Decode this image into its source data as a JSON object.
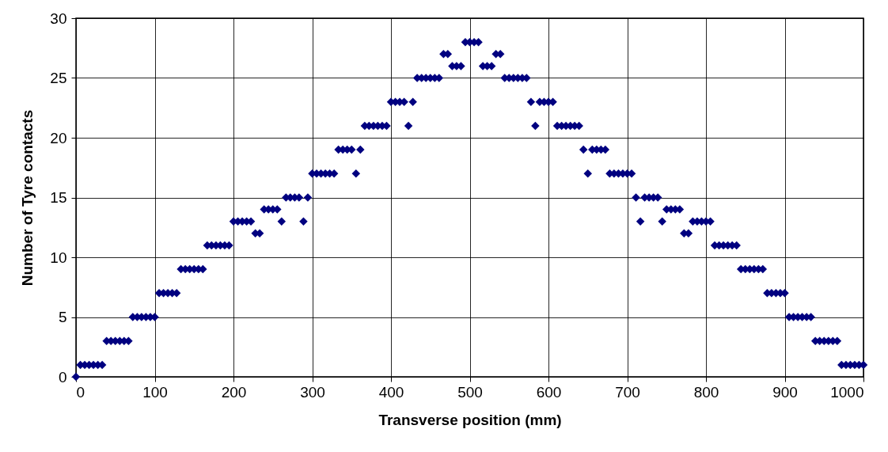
{
  "chart_data": {
    "type": "scatter",
    "xlabel": "Transverse position (mm)",
    "ylabel": "Number of Tyre contacts",
    "x": [
      0,
      5.6,
      11.1,
      16.7,
      22.2,
      27.8,
      33.3,
      38.9,
      44.4,
      50,
      55.6,
      61.1,
      66.7,
      72.2,
      77.8,
      83.3,
      88.9,
      94.4,
      100,
      105.6,
      111.1,
      116.7,
      122.2,
      127.8,
      133.3,
      138.9,
      144.4,
      150,
      155.6,
      161.1,
      166.7,
      172.2,
      177.8,
      183.3,
      188.9,
      194.4,
      200,
      205.6,
      211.1,
      216.7,
      222.2,
      227.8,
      233.3,
      238.9,
      244.4,
      250,
      255.6,
      261.1,
      266.7,
      272.2,
      277.8,
      283.3,
      288.9,
      294.4,
      300,
      305.6,
      311.1,
      316.7,
      322.2,
      327.8,
      333.3,
      338.9,
      344.4,
      350,
      355.6,
      361.1,
      366.7,
      372.2,
      377.8,
      383.3,
      388.9,
      394.4,
      400,
      405.6,
      411.1,
      416.7,
      422.2,
      427.8,
      433.3,
      438.9,
      444.4,
      450,
      455.6,
      461.1,
      466.7,
      472.2,
      477.8,
      483.3,
      488.9,
      494.4,
      500,
      505.6,
      511.1,
      516.7,
      522.2,
      527.8,
      533.3,
      538.9,
      544.4,
      550,
      555.6,
      561.1,
      566.7,
      572.2,
      577.8,
      583.3,
      588.9,
      594.4,
      600,
      605.6,
      611.1,
      616.7,
      622.2,
      627.8,
      633.3,
      638.9,
      644.4,
      650,
      655.6,
      661.1,
      666.7,
      672.2,
      677.8,
      683.3,
      688.9,
      694.4,
      700,
      705.6,
      711.1,
      716.7,
      722.2,
      727.8,
      733.3,
      738.9,
      744.4,
      750,
      755.6,
      761.1,
      766.7,
      772.2,
      777.8,
      783.3,
      788.9,
      794.4,
      800,
      805.6,
      811.1,
      816.7,
      822.2,
      827.8,
      833.3,
      838.9,
      844.4,
      850,
      855.6,
      861.1,
      866.7,
      872.2,
      877.8,
      883.3,
      888.9,
      894.4,
      900,
      905.6,
      911.1,
      916.7,
      922.2,
      927.8,
      933.3,
      938.9,
      944.4,
      950,
      955.6,
      961.1,
      966.7,
      972.2,
      977.8,
      983.3,
      988.9,
      994.4,
      1000
    ],
    "series": [
      {
        "color": "#000080",
        "values": [
          0,
          1,
          1,
          1,
          1,
          1,
          1,
          3,
          3,
          3,
          3,
          3,
          3,
          5,
          5,
          5,
          5,
          5,
          5,
          7,
          7,
          7,
          7,
          7,
          9,
          9,
          9,
          9,
          9,
          9,
          11,
          11,
          11,
          11,
          11,
          11,
          13,
          13,
          13,
          13,
          13,
          12,
          12,
          14,
          14,
          14,
          14,
          13,
          15,
          15,
          15,
          15,
          13,
          15,
          17,
          17,
          17,
          17,
          17,
          17,
          19,
          19,
          19,
          19,
          17,
          19,
          21,
          21,
          21,
          21,
          21,
          21,
          23,
          23,
          23,
          23,
          21,
          23,
          25,
          25,
          25,
          25,
          25,
          25,
          27,
          27,
          26,
          26,
          26,
          28,
          28,
          28,
          28,
          26,
          26,
          26,
          27,
          27,
          25,
          25,
          25,
          25,
          25,
          25,
          23,
          21,
          23,
          23,
          23,
          23,
          21,
          21,
          21,
          21,
          21,
          21,
          19,
          17,
          19,
          19,
          19,
          19,
          17,
          17,
          17,
          17,
          17,
          17,
          15,
          13,
          15,
          15,
          15,
          15,
          13,
          14,
          14,
          14,
          14,
          12,
          12,
          13,
          13,
          13,
          13,
          13,
          11,
          11,
          11,
          11,
          11,
          11,
          9,
          9,
          9,
          9,
          9,
          9,
          7,
          7,
          7,
          7,
          7,
          5,
          5,
          5,
          5,
          5,
          5,
          3,
          3,
          3,
          3,
          3,
          3,
          1,
          1,
          1,
          1,
          1,
          1
        ]
      }
    ],
    "xlim": [
      0,
      1000
    ],
    "xticks": [
      0,
      100,
      200,
      300,
      400,
      500,
      600,
      700,
      800,
      900,
      1000
    ],
    "ylim": [
      0,
      30
    ],
    "yticks": [
      0,
      5,
      10,
      15,
      20,
      25,
      30
    ],
    "grid": true,
    "marker": "diamond"
  }
}
